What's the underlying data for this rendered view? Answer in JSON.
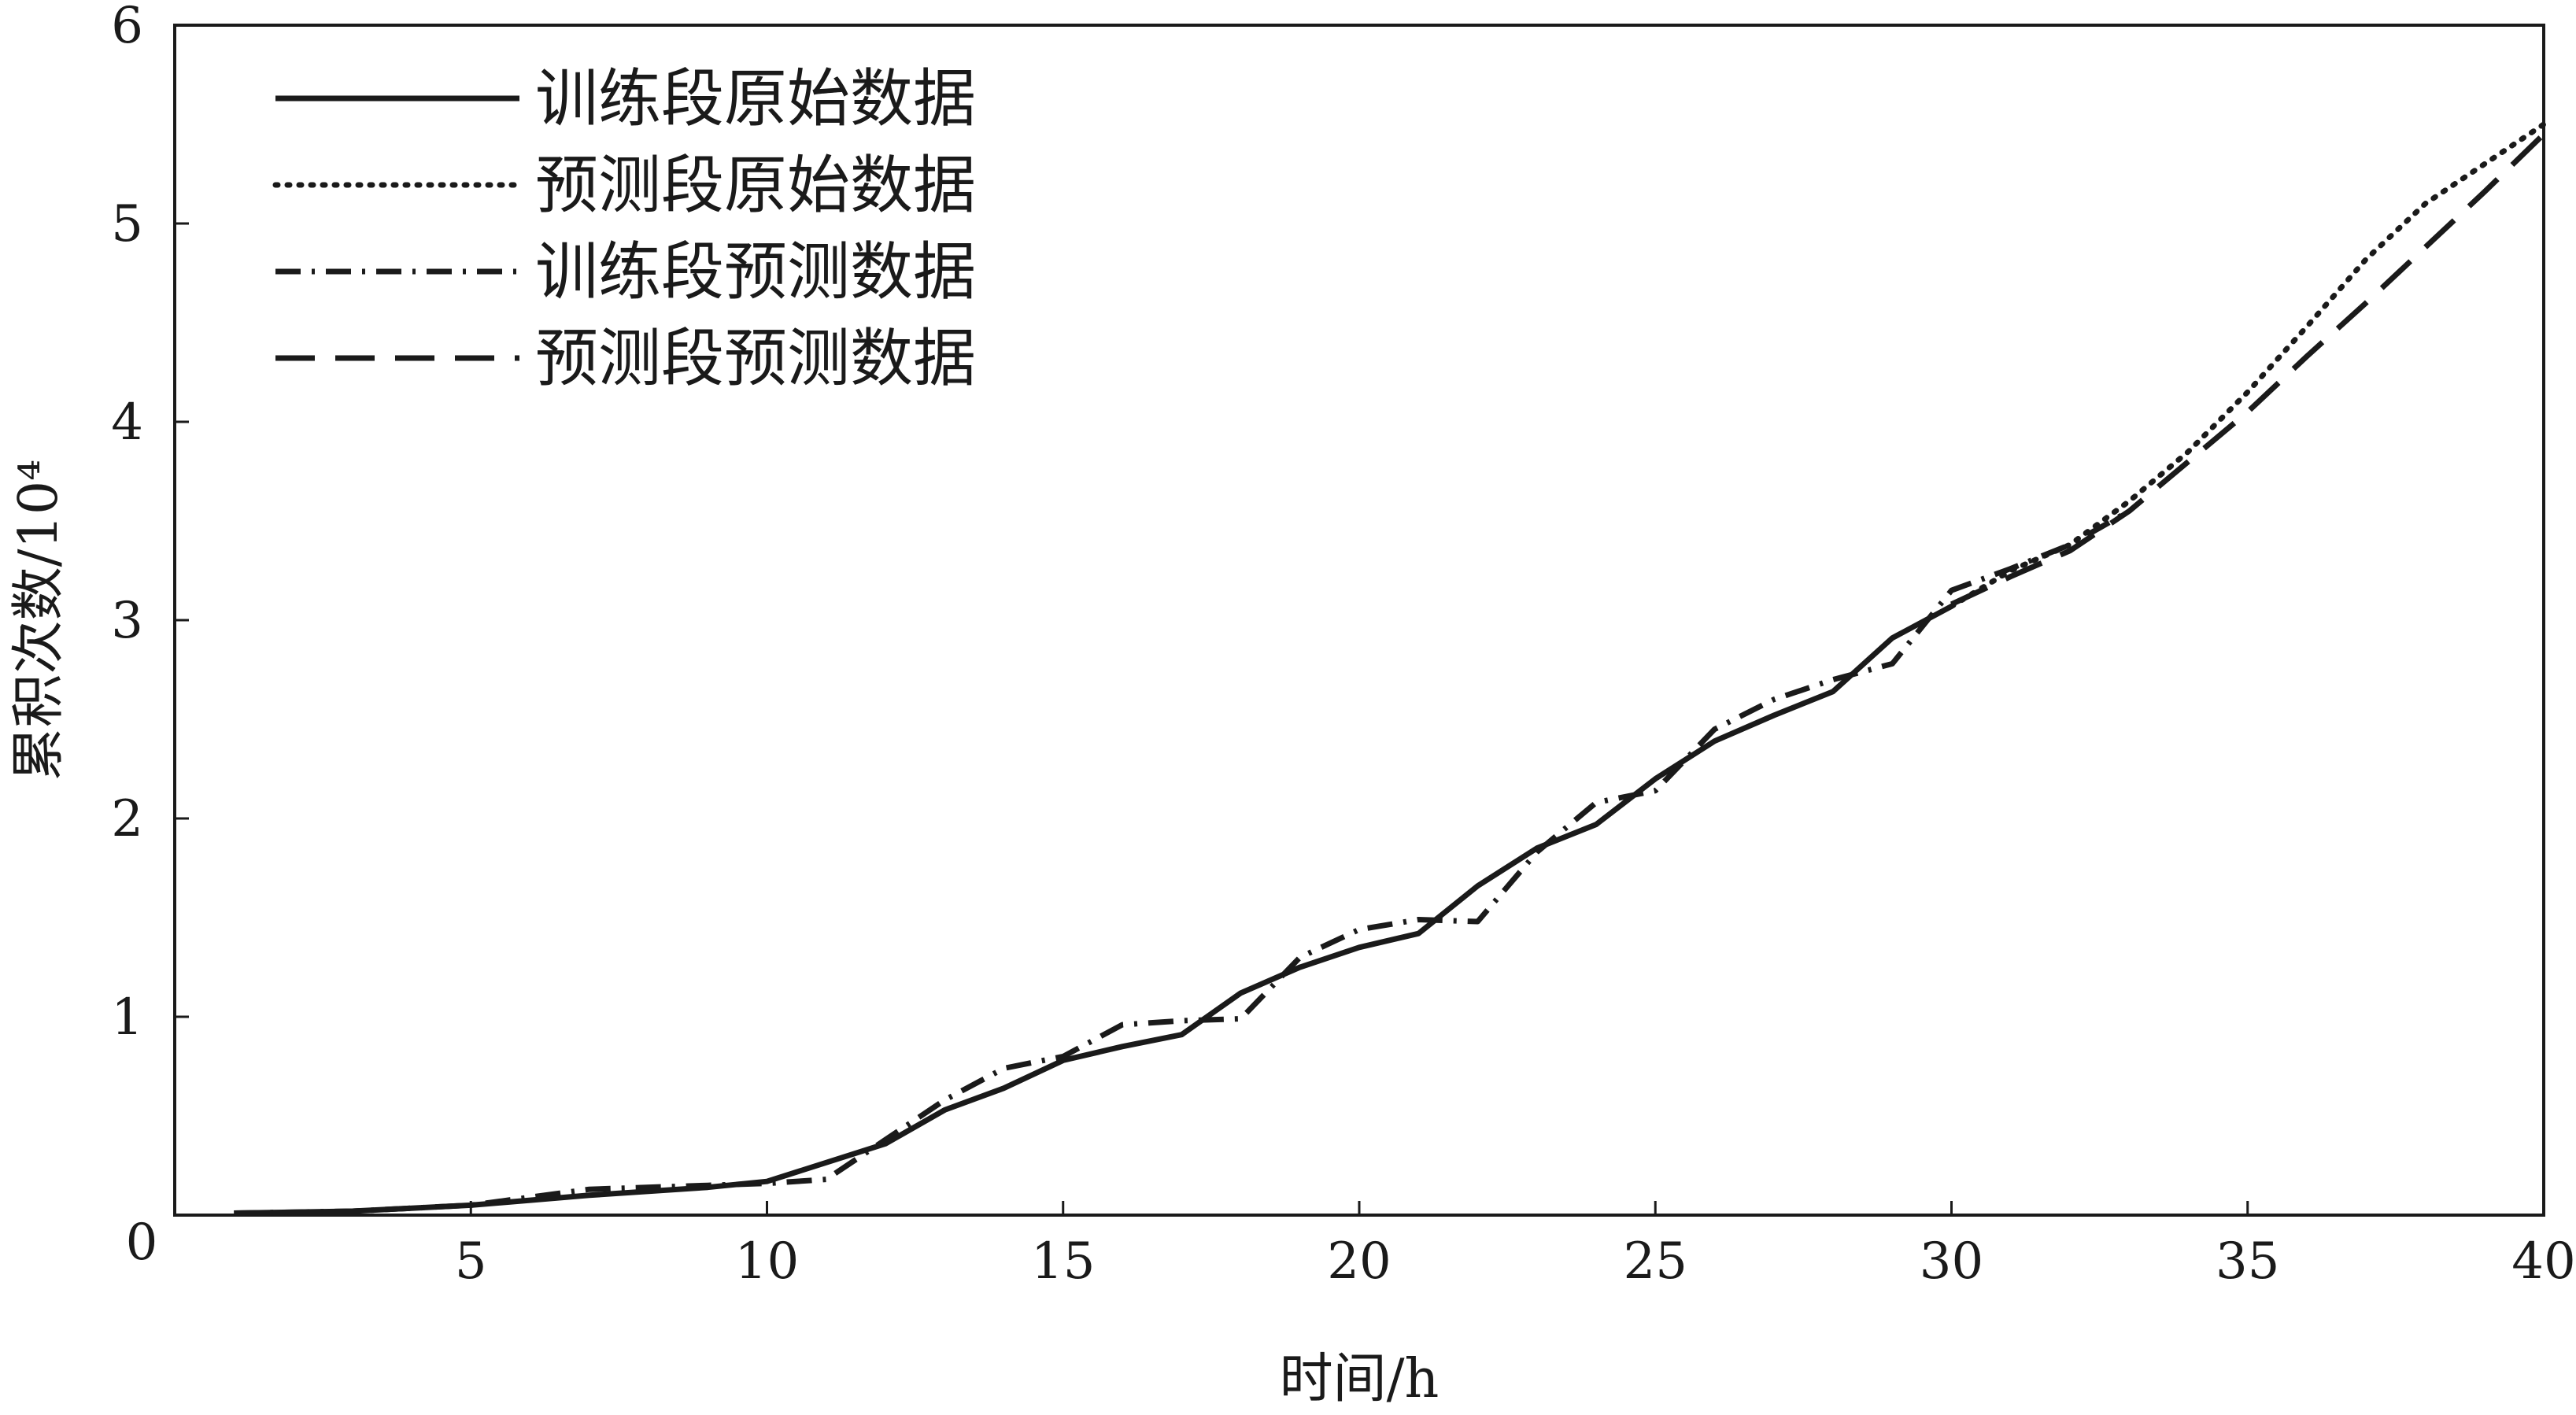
{
  "chart_data": {
    "type": "line",
    "title": "",
    "xlabel": "时间/h",
    "ylabel": "累积次数/10⁴",
    "xlim": [
      0,
      40
    ],
    "ylim": [
      0,
      6
    ],
    "x_ticks": [
      "5",
      "10",
      "15",
      "20",
      "25",
      "30",
      "35",
      "40"
    ],
    "y_ticks": [
      "1",
      "2",
      "3",
      "4",
      "5",
      "6"
    ],
    "origin_label": "0",
    "grid": false,
    "legend_position": "top-left",
    "series": [
      {
        "name": "训练段原始数据",
        "style": "solid",
        "color": "#1a1a1a",
        "x": [
          1,
          3,
          5,
          7,
          9,
          10,
          12,
          13,
          14,
          15,
          16,
          17,
          18,
          19,
          20,
          21,
          22,
          23,
          24,
          25,
          26,
          27,
          28,
          29,
          30
        ],
        "y": [
          0.01,
          0.02,
          0.05,
          0.1,
          0.14,
          0.17,
          0.36,
          0.53,
          0.64,
          0.78,
          0.85,
          0.91,
          1.12,
          1.25,
          1.35,
          1.42,
          1.66,
          1.85,
          1.97,
          2.2,
          2.39,
          2.52,
          2.64,
          2.91,
          3.07
        ]
      },
      {
        "name": "预测段原始数据",
        "style": "dotted",
        "color": "#1a1a1a",
        "x": [
          30,
          31,
          32,
          33,
          34,
          35,
          36,
          37,
          38,
          39,
          40
        ],
        "y": [
          3.07,
          3.25,
          3.38,
          3.6,
          3.85,
          4.15,
          4.48,
          4.82,
          5.1,
          5.3,
          5.5
        ]
      },
      {
        "name": "训练段预测数据",
        "style": "dashdot",
        "color": "#1a1a1a",
        "x": [
          1,
          3,
          5,
          7,
          9,
          10,
          11,
          12,
          13,
          14,
          15,
          16,
          17,
          18,
          19,
          20,
          21,
          22,
          23,
          24,
          25,
          26,
          27,
          28,
          29,
          30,
          31,
          32,
          33
        ],
        "y": [
          0.01,
          0.02,
          0.05,
          0.13,
          0.15,
          0.16,
          0.18,
          0.38,
          0.58,
          0.74,
          0.8,
          0.96,
          0.98,
          0.99,
          1.3,
          1.44,
          1.49,
          1.48,
          1.83,
          2.08,
          2.14,
          2.45,
          2.6,
          2.7,
          2.78,
          3.15,
          3.26,
          3.38,
          3.55
        ]
      },
      {
        "name": "预测段预测数据",
        "style": "dashed",
        "color": "#1a1a1a",
        "x": [
          30,
          31,
          32,
          33,
          34,
          35,
          36,
          37,
          38,
          39,
          40
        ],
        "y": [
          3.08,
          3.22,
          3.35,
          3.55,
          3.8,
          4.05,
          4.33,
          4.6,
          4.88,
          5.16,
          5.45
        ]
      }
    ]
  }
}
